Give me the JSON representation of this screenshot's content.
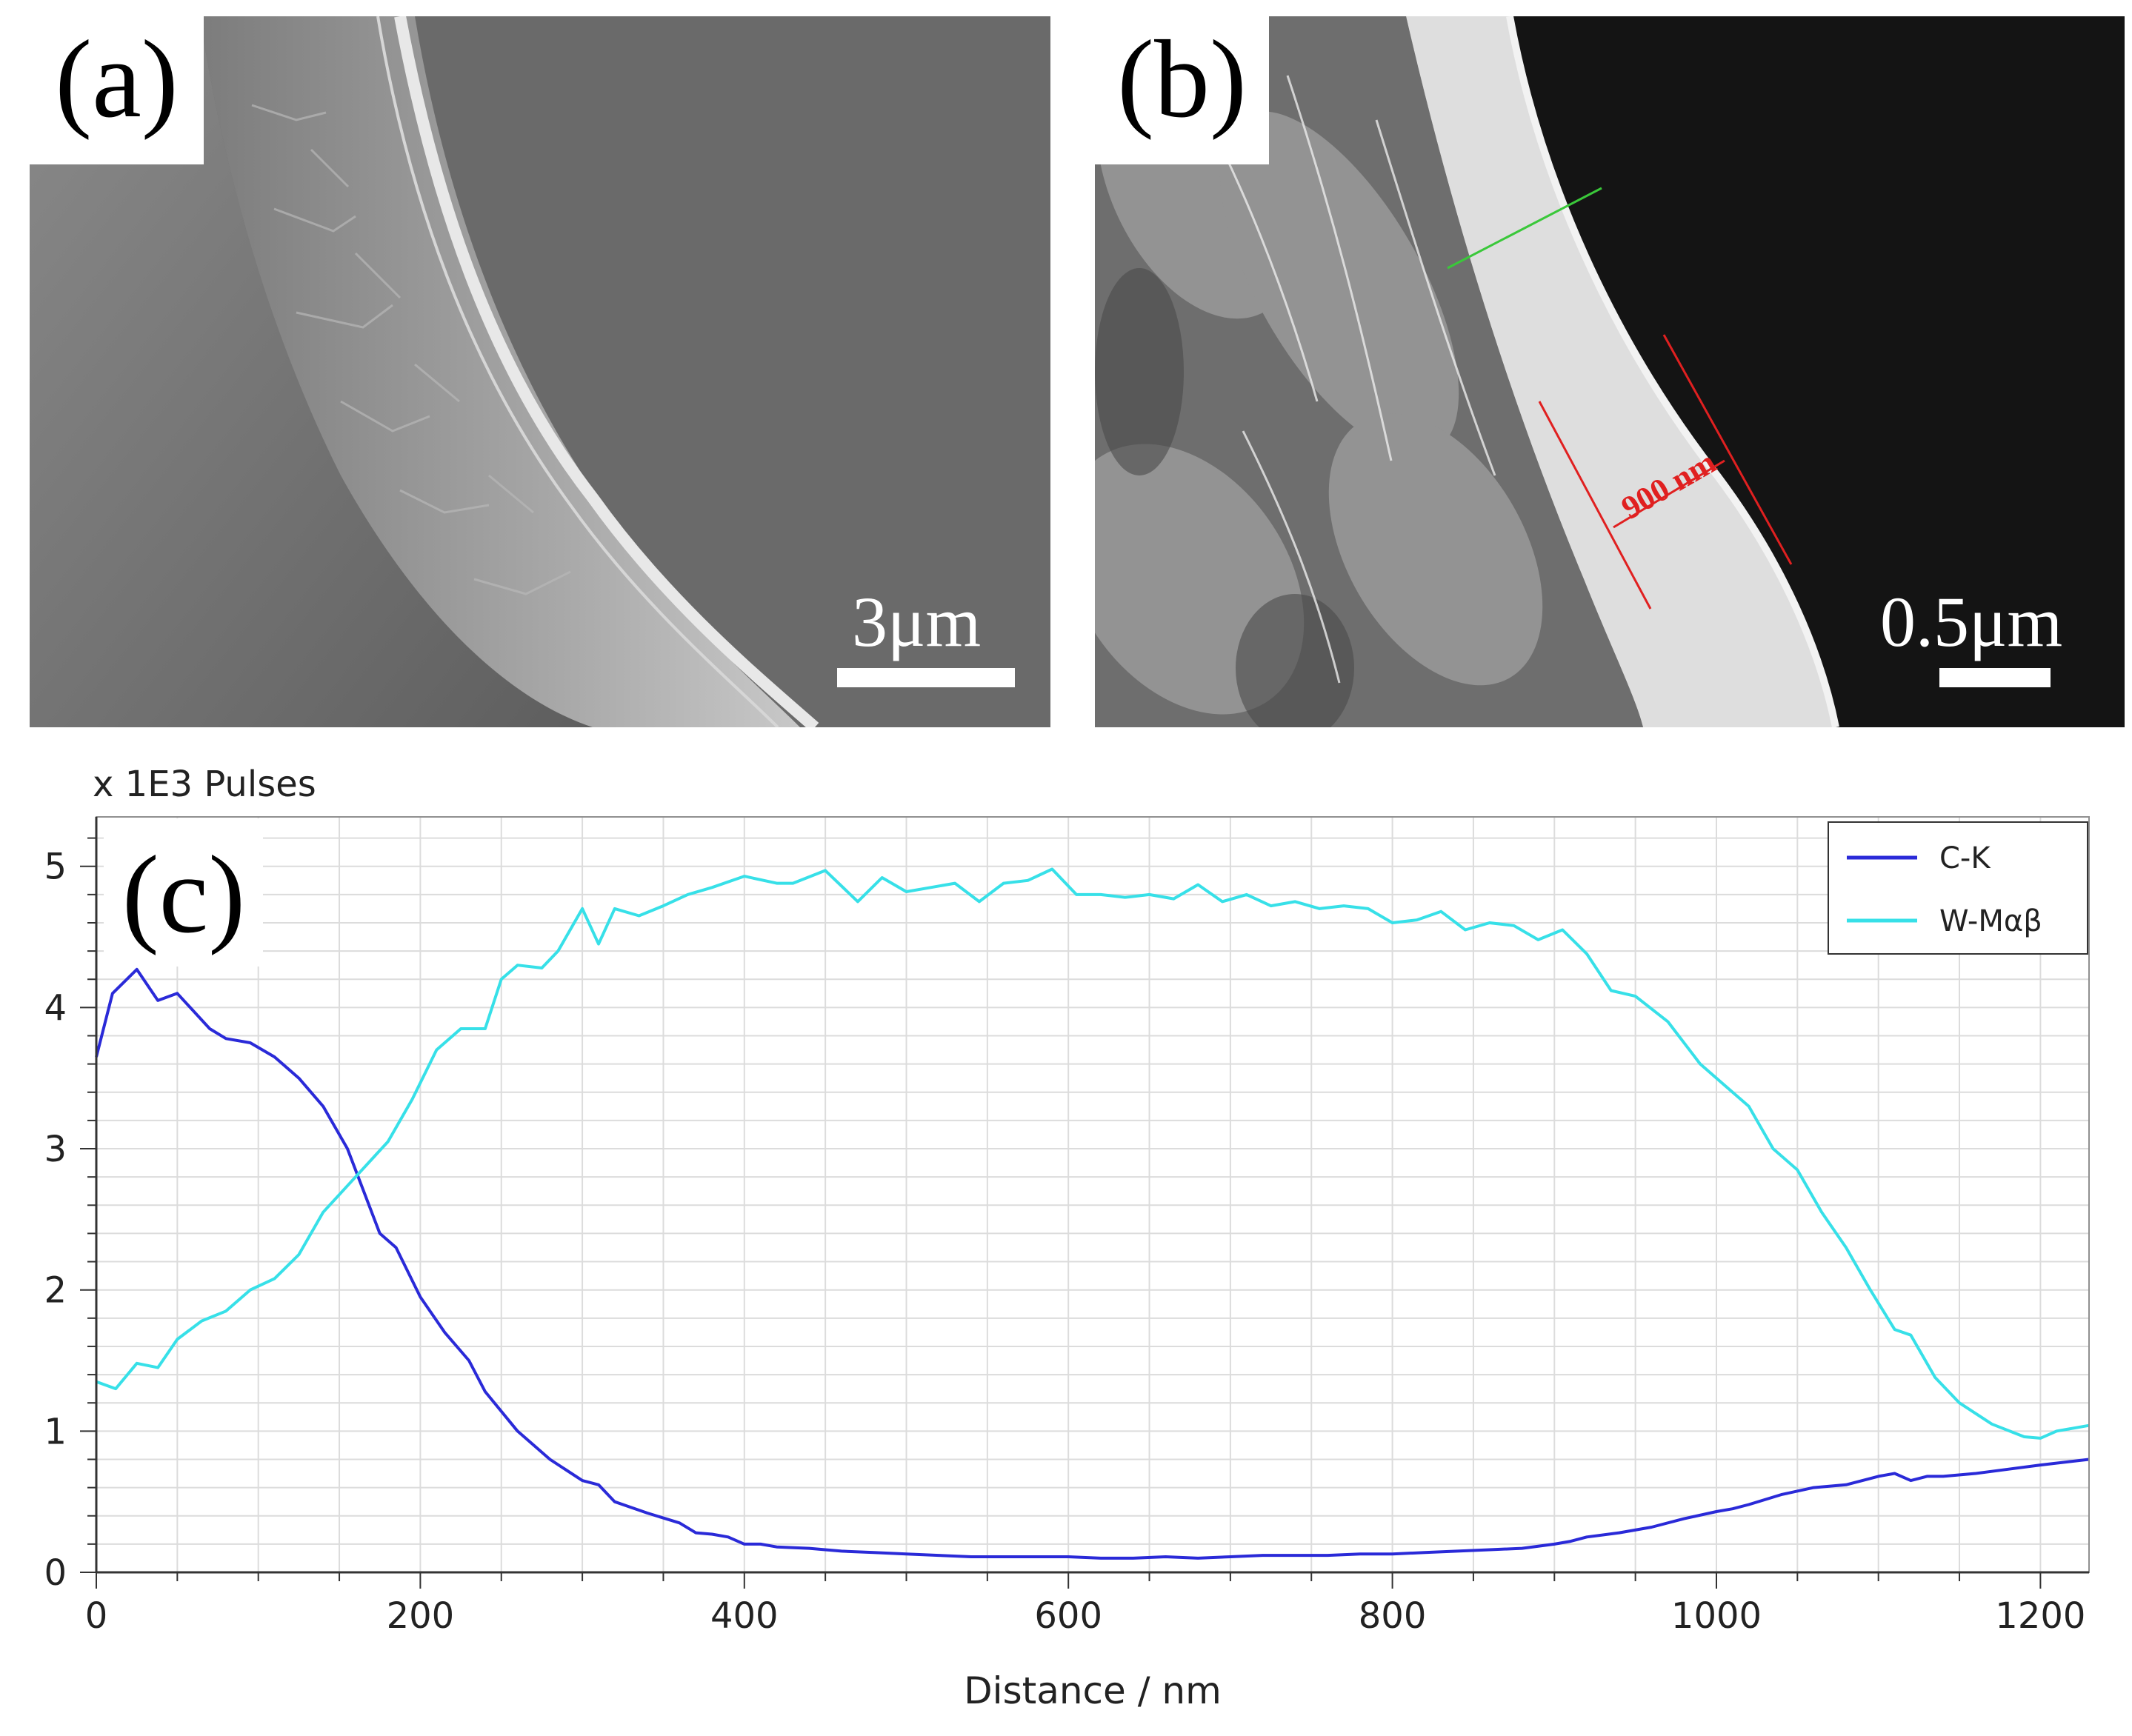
{
  "panels": {
    "a": {
      "label": "(a)",
      "scale_bar": "3μm"
    },
    "b": {
      "label": "(b)",
      "scale_bar": "0.5μm",
      "measurement": "900 nm"
    }
  },
  "colors": {
    "c_k": "#2a2ad8",
    "w_mab": "#37e0e8",
    "grid": "#dcdcdc",
    "measure_red": "#e02020",
    "line_green": "#3ac83a"
  },
  "chart_data": {
    "type": "line",
    "panel_label": "(c)",
    "ylabel": "x 1E3 Pulses",
    "xlabel": "Distance / nm",
    "xlim": [
      0,
      1230
    ],
    "ylim": [
      0,
      5.35
    ],
    "xticks": [
      0,
      200,
      400,
      600,
      800,
      1000,
      1200
    ],
    "yticks": [
      0,
      1,
      2,
      3,
      4,
      5
    ],
    "legend_position": "top-right",
    "series": [
      {
        "name": "C-K",
        "color": "#2a2ad8",
        "x": [
          0,
          10,
          25,
          38,
          50,
          70,
          80,
          95,
          110,
          125,
          140,
          155,
          175,
          185,
          200,
          215,
          230,
          240,
          260,
          280,
          300,
          310,
          320,
          340,
          360,
          370,
          380,
          390,
          400,
          410,
          420,
          440,
          460,
          480,
          500,
          520,
          540,
          560,
          580,
          600,
          620,
          640,
          660,
          680,
          700,
          720,
          740,
          760,
          780,
          800,
          820,
          840,
          860,
          880,
          900,
          910,
          920,
          940,
          960,
          980,
          1000,
          1010,
          1020,
          1040,
          1060,
          1080,
          1100,
          1110,
          1120,
          1130,
          1140,
          1160,
          1180,
          1200,
          1230
        ],
        "values": [
          3.65,
          4.1,
          4.27,
          4.05,
          4.1,
          3.85,
          3.78,
          3.75,
          3.65,
          3.5,
          3.3,
          3.0,
          2.4,
          2.3,
          1.95,
          1.7,
          1.5,
          1.28,
          1.0,
          0.8,
          0.65,
          0.62,
          0.5,
          0.42,
          0.35,
          0.28,
          0.27,
          0.25,
          0.2,
          0.2,
          0.18,
          0.17,
          0.15,
          0.14,
          0.13,
          0.12,
          0.11,
          0.11,
          0.11,
          0.11,
          0.1,
          0.1,
          0.11,
          0.1,
          0.11,
          0.12,
          0.12,
          0.12,
          0.13,
          0.13,
          0.14,
          0.15,
          0.16,
          0.17,
          0.2,
          0.22,
          0.25,
          0.28,
          0.32,
          0.38,
          0.43,
          0.45,
          0.48,
          0.55,
          0.6,
          0.62,
          0.68,
          0.7,
          0.65,
          0.68,
          0.68,
          0.7,
          0.73,
          0.76,
          0.8
        ]
      },
      {
        "name": "W-Mαβ",
        "color": "#37e0e8",
        "x": [
          0,
          12,
          25,
          38,
          50,
          65,
          80,
          95,
          110,
          125,
          140,
          160,
          180,
          195,
          210,
          225,
          240,
          250,
          260,
          275,
          285,
          300,
          310,
          320,
          335,
          350,
          365,
          380,
          400,
          420,
          430,
          450,
          470,
          485,
          500,
          515,
          530,
          545,
          560,
          575,
          590,
          605,
          620,
          635,
          650,
          665,
          680,
          695,
          710,
          725,
          740,
          755,
          770,
          785,
          800,
          815,
          830,
          845,
          860,
          875,
          890,
          905,
          920,
          935,
          950,
          970,
          990,
          1005,
          1020,
          1035,
          1050,
          1065,
          1080,
          1095,
          1110,
          1120,
          1135,
          1150,
          1170,
          1190,
          1200,
          1210,
          1230
        ],
        "values": [
          1.35,
          1.3,
          1.48,
          1.45,
          1.65,
          1.78,
          1.85,
          2.0,
          2.08,
          2.25,
          2.55,
          2.8,
          3.05,
          3.35,
          3.7,
          3.85,
          3.85,
          4.2,
          4.3,
          4.28,
          4.4,
          4.7,
          4.45,
          4.7,
          4.65,
          4.72,
          4.8,
          4.85,
          4.93,
          4.88,
          4.88,
          4.97,
          4.75,
          4.92,
          4.82,
          4.85,
          4.88,
          4.75,
          4.88,
          4.9,
          4.98,
          4.8,
          4.8,
          4.78,
          4.8,
          4.77,
          4.87,
          4.75,
          4.8,
          4.72,
          4.75,
          4.7,
          4.72,
          4.7,
          4.6,
          4.62,
          4.68,
          4.55,
          4.6,
          4.58,
          4.48,
          4.55,
          4.38,
          4.12,
          4.08,
          3.9,
          3.6,
          3.45,
          3.3,
          3.0,
          2.85,
          2.55,
          2.3,
          2.0,
          1.72,
          1.68,
          1.38,
          1.2,
          1.05,
          0.96,
          0.95,
          1.0,
          1.04
        ]
      }
    ]
  }
}
